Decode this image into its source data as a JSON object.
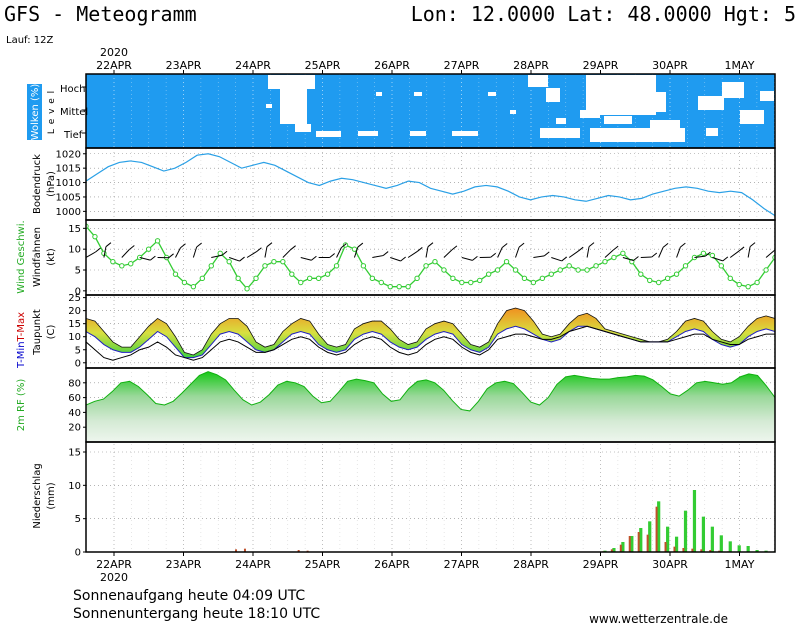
{
  "header": {
    "title": "GFS - Meteogramm",
    "location": "Lon: 12.0000 Lat: 48.0000 Hgt: 5",
    "run": "Lauf: 12Z"
  },
  "footer": {
    "sunrise": "Sonnenaufgang heute 04:09 UTC",
    "sunset": "Sonnenuntergang heute 18:10 UTC",
    "source": "www.wetterzentrale.de"
  },
  "colors": {
    "cloud_bg": "#1f9bf0",
    "pressure_line": "#2aa0e6",
    "wind_line": "#33cc33",
    "tmin_label": "#0000cc",
    "tmax_label": "#cc0000",
    "temp_fill_low": "#3fd03f",
    "temp_fill_high": "#f09020",
    "rh_top": "#22cc22",
    "precip_green": "#33cc33",
    "precip_red": "#c0502a"
  },
  "chart_data": {
    "type": "meteogram",
    "year_label": "2020",
    "days": [
      "22APR",
      "23APR",
      "24APR",
      "25APR",
      "26APR",
      "27APR",
      "28APR",
      "29APR",
      "30APR",
      "1MAY"
    ],
    "panels": [
      {
        "id": "clouds",
        "ylabel": "Wolken (%)",
        "ylabel2": "L e v e l",
        "levels": [
          "Hoch",
          "Mittel",
          "Tief"
        ]
      },
      {
        "id": "pressure",
        "ylabel": "Bodendruck",
        "ylabel2": "(hPa)",
        "yticks": [
          1000,
          1005,
          1010,
          1015,
          1020
        ],
        "ylim": [
          997,
          1022
        ],
        "series": [
          {
            "values": [
              1010.5,
              1013,
              1015.5,
              1017,
              1017.5,
              1017,
              1015.5,
              1014,
              1015,
              1017,
              1019.5,
              1020,
              1019,
              1017,
              1015,
              1016,
              1017,
              1016,
              1014,
              1012,
              1010,
              1009,
              1010.5,
              1011.5,
              1011,
              1010,
              1009,
              1008,
              1009,
              1010.5,
              1010,
              1008,
              1007,
              1006,
              1007,
              1008.5,
              1009,
              1008.5,
              1007,
              1005,
              1004,
              1005,
              1005.5,
              1005,
              1004,
              1003.5,
              1004.5,
              1005.5,
              1005,
              1004,
              1004.5,
              1006,
              1007,
              1008,
              1008.5,
              1008,
              1007,
              1006.5,
              1007,
              1006.5,
              1004,
              1001,
              998.5
            ]
          }
        ]
      },
      {
        "id": "wind",
        "ylabel": "Wind Geschwi.",
        "ylabel2": "Windfahnen",
        "ylabel3": "(kt)",
        "yticks": [
          0,
          5,
          10,
          15
        ],
        "ylim": [
          -1,
          17
        ],
        "series": [
          {
            "values": [
              15.5,
              13,
              9,
              7,
              6,
              6.5,
              8,
              10,
              12,
              8,
              4,
              2,
              1,
              3,
              6,
              9,
              7,
              3,
              0.5,
              3,
              6,
              7,
              7,
              4,
              2,
              3,
              3,
              4,
              6,
              11,
              10,
              6,
              3,
              2,
              1,
              1,
              1,
              3,
              6,
              7,
              5,
              3,
              2,
              2,
              2.5,
              4,
              5,
              7,
              5,
              3,
              2,
              3,
              4,
              5,
              6,
              5,
              5,
              6,
              7,
              8,
              9,
              7,
              4,
              2.5,
              2,
              3,
              4,
              6,
              8,
              9,
              8.5,
              6,
              3,
              1.5,
              1,
              2,
              5,
              8
            ]
          }
        ]
      },
      {
        "id": "temperature",
        "ylabel": "T-Min, Max",
        "ylabel2": "Taupunkt",
        "ylabel3": "(C)",
        "yticks": [
          0,
          5,
          10,
          15,
          20,
          25
        ],
        "ylim": [
          -2,
          26
        ],
        "series": [
          {
            "name": "T-Max",
            "values": [
              17,
              16,
              12,
              8,
              6,
              6,
              10,
              14,
              17,
              15,
              10,
              4,
              3,
              5,
              11,
              15,
              17,
              17,
              14,
              8,
              6,
              7,
              12,
              15,
              17,
              16,
              11,
              7,
              6,
              7,
              13,
              15,
              16,
              16,
              13,
              9,
              7,
              8,
              13,
              15,
              16,
              15,
              11,
              7,
              6,
              8,
              15,
              20,
              21,
              20,
              16,
              11,
              10,
              11,
              15,
              18,
              19,
              17,
              13,
              12,
              11,
              10,
              9,
              8,
              8,
              9,
              12,
              16,
              17,
              16,
              12,
              9,
              8,
              10,
              14,
              17,
              18,
              17
            ]
          },
          {
            "name": "T-Min",
            "values": [
              12,
              10,
              7,
              5,
              4,
              4,
              6,
              9,
              12,
              10,
              6,
              2,
              2,
              3,
              7,
              11,
              12,
              11,
              8,
              5,
              4,
              5,
              8,
              11,
              12,
              11,
              7,
              5,
              4,
              5,
              9,
              11,
              12,
              11,
              8,
              6,
              5,
              6,
              9,
              11,
              12,
              11,
              7,
              5,
              4,
              6,
              11,
              13,
              14,
              13,
              11,
              9,
              8,
              9,
              12,
              14,
              14,
              13,
              12,
              11,
              10,
              9,
              8,
              8,
              8,
              8,
              10,
              12,
              13,
              12,
              9,
              7,
              6,
              7,
              10,
              12,
              13,
              12
            ]
          },
          {
            "name": "Taupunkt",
            "values": [
              8,
              5,
              2,
              1,
              2,
              3,
              5,
              6,
              8,
              6,
              3,
              2,
              1,
              2,
              5,
              8,
              9,
              8,
              6,
              4,
              4,
              5,
              7,
              9,
              10,
              9,
              6,
              4,
              3,
              4,
              7,
              9,
              10,
              9,
              6,
              4,
              3,
              4,
              7,
              9,
              10,
              9,
              6,
              4,
              3,
              5,
              9,
              10,
              11,
              11,
              10,
              9,
              9,
              10,
              12,
              13,
              14,
              13,
              12,
              11,
              10,
              9,
              8,
              8,
              8,
              8,
              9,
              10,
              11,
              11,
              9,
              8,
              7,
              7,
              9,
              10,
              11,
              11
            ]
          }
        ]
      },
      {
        "id": "humidity",
        "ylabel": "2m RF (%)",
        "yticks": [
          20,
          40,
          60,
          80
        ],
        "ylim": [
          0,
          100
        ],
        "series": [
          {
            "values": [
              50,
              55,
              58,
              68,
              80,
              82,
              75,
              64,
              52,
              50,
              55,
              66,
              78,
              90,
              95,
              91,
              84,
              70,
              57,
              50,
              54,
              64,
              77,
              82,
              80,
              75,
              62,
              53,
              55,
              68,
              82,
              85,
              83,
              80,
              65,
              55,
              57,
              72,
              82,
              84,
              80,
              70,
              56,
              44,
              42,
              55,
              72,
              80,
              82,
              79,
              67,
              54,
              50,
              60,
              78,
              88,
              90,
              88,
              86,
              85,
              85,
              87,
              88,
              90,
              89,
              84,
              75,
              65,
              62,
              70,
              80,
              82,
              80,
              78,
              80,
              88,
              92,
              90,
              76,
              60
            ]
          }
        ]
      },
      {
        "id": "precip",
        "ylabel": "Niederschlag",
        "ylabel2": "(mm)",
        "yticks": [
          0,
          5,
          10,
          15
        ],
        "ylim": [
          0,
          16.5
        ],
        "series": [
          {
            "name": "total",
            "values": [
              0,
              0,
              0,
              0,
              0,
              0,
              0,
              0,
              0,
              0,
              0,
              0,
              0,
              0,
              0,
              0,
              0,
              0,
              0,
              0,
              0,
              0,
              0,
              0,
              0,
              0,
              0,
              0,
              0,
              0,
              0,
              0,
              0,
              0,
              0,
              0,
              0,
              0,
              0,
              0,
              0,
              0,
              0,
              0,
              0,
              0,
              0,
              0,
              0,
              0,
              0,
              0,
              0,
              0,
              0,
              0,
              0,
              0,
              0.2,
              0.6,
              1.5,
              2.4,
              3.6,
              4.6,
              7.6,
              3.8,
              2.3,
              6.2,
              9.3,
              5.3,
              3.8,
              2.5,
              1.6,
              1.0,
              0.9,
              0.3,
              0.2,
              0.1
            ]
          },
          {
            "name": "convective",
            "values": [
              0,
              0,
              0,
              0,
              0,
              0,
              0,
              0,
              0,
              0,
              0,
              0,
              0,
              0,
              0,
              0,
              0,
              0.4,
              0.5,
              0,
              0,
              0,
              0,
              0,
              0.3,
              0.2,
              0,
              0,
              0,
              0,
              0,
              0,
              0,
              0,
              0,
              0,
              0,
              0,
              0,
              0,
              0,
              0,
              0,
              0,
              0,
              0,
              0,
              0,
              0,
              0,
              0,
              0,
              0,
              0,
              0,
              0,
              0,
              0,
              0.1,
              0.4,
              1.1,
              2.4,
              3.0,
              2.6,
              6.8,
              1.5,
              0.8,
              0.6,
              0.5,
              0.4,
              0.3,
              0.2,
              0.1,
              0,
              0,
              0,
              0,
              0
            ]
          }
        ]
      }
    ]
  }
}
